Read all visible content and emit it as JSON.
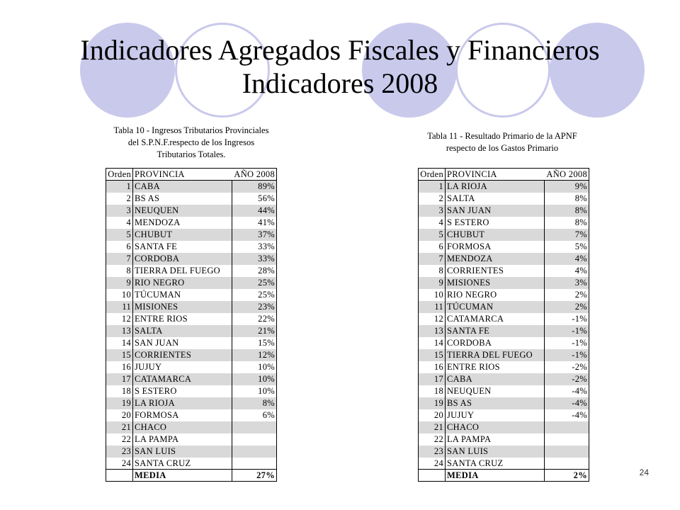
{
  "title_line1": "Indicadores Agregados Fiscales y Financieros",
  "title_line2": "Indicadores 2008",
  "accent_color": "#c9c9ec",
  "page_number": "24",
  "table1": {
    "caption": "Tabla 10 - Ingresos Tributarios Provinciales\ndel S.P.N.F.respecto de los Ingresos\nTributarios Totales.",
    "headers": {
      "order": "Orden",
      "province": "PROVINCIA",
      "year": "AÑO 2008"
    },
    "rows": [
      {
        "order": "1",
        "province": "CABA",
        "value": "89%"
      },
      {
        "order": "2",
        "province": "BS AS",
        "value": "56%"
      },
      {
        "order": "3",
        "province": "NEUQUEN",
        "value": "44%"
      },
      {
        "order": "4",
        "province": "MENDOZA",
        "value": "41%"
      },
      {
        "order": "5",
        "province": "CHUBUT",
        "value": "37%"
      },
      {
        "order": "6",
        "province": "SANTA FE",
        "value": "33%"
      },
      {
        "order": "7",
        "province": "CORDOBA",
        "value": "33%"
      },
      {
        "order": "8",
        "province": "TIERRA DEL FUEGO",
        "value": "28%"
      },
      {
        "order": "9",
        "province": "RIO NEGRO",
        "value": "25%"
      },
      {
        "order": "10",
        "province": "TÚCUMAN",
        "value": "25%"
      },
      {
        "order": "11",
        "province": "MISIONES",
        "value": "23%"
      },
      {
        "order": "12",
        "province": "ENTRE RIOS",
        "value": "22%"
      },
      {
        "order": "13",
        "province": "SALTA",
        "value": "21%"
      },
      {
        "order": "14",
        "province": "SAN JUAN",
        "value": "15%"
      },
      {
        "order": "15",
        "province": "CORRIENTES",
        "value": "12%"
      },
      {
        "order": "16",
        "province": "JUJUY",
        "value": "10%"
      },
      {
        "order": "17",
        "province": "CATAMARCA",
        "value": "10%"
      },
      {
        "order": "18",
        "province": "S ESTERO",
        "value": "10%"
      },
      {
        "order": "19",
        "province": "LA RIOJA",
        "value": "8%"
      },
      {
        "order": "20",
        "province": "FORMOSA",
        "value": "6%"
      },
      {
        "order": "21",
        "province": "CHACO",
        "value": ""
      },
      {
        "order": "22",
        "province": "LA PAMPA",
        "value": ""
      },
      {
        "order": "23",
        "province": "SAN LUIS",
        "value": ""
      },
      {
        "order": "24",
        "province": "SANTA CRUZ",
        "value": ""
      }
    ],
    "media_label": "MEDIA",
    "media_value": "27%"
  },
  "table2": {
    "caption": "Tabla 11 - Resultado Primario de la APNF\nrespecto de los Gastos Primario",
    "headers": {
      "order": "Orden",
      "province": "PROVINCIA",
      "year": "AÑO 2008"
    },
    "rows": [
      {
        "order": "1",
        "province": "LA RIOJA",
        "value": "9%"
      },
      {
        "order": "2",
        "province": "SALTA",
        "value": "8%"
      },
      {
        "order": "3",
        "province": "SAN JUAN",
        "value": "8%"
      },
      {
        "order": "4",
        "province": "S ESTERO",
        "value": "8%"
      },
      {
        "order": "5",
        "province": "CHUBUT",
        "value": "7%"
      },
      {
        "order": "6",
        "province": "FORMOSA",
        "value": "5%"
      },
      {
        "order": "7",
        "province": "MENDOZA",
        "value": "4%"
      },
      {
        "order": "8",
        "province": "CORRIENTES",
        "value": "4%"
      },
      {
        "order": "9",
        "province": "MISIONES",
        "value": "3%"
      },
      {
        "order": "10",
        "province": "RIO NEGRO",
        "value": "2%"
      },
      {
        "order": "11",
        "province": "TÚCUMAN",
        "value": "2%"
      },
      {
        "order": "12",
        "province": "CATAMARCA",
        "value": "-1%"
      },
      {
        "order": "13",
        "province": "SANTA FE",
        "value": "-1%"
      },
      {
        "order": "14",
        "province": "CORDOBA",
        "value": "-1%"
      },
      {
        "order": "15",
        "province": "TIERRA DEL FUEGO",
        "value": "-1%"
      },
      {
        "order": "16",
        "province": "ENTRE RIOS",
        "value": "-2%"
      },
      {
        "order": "17",
        "province": "CABA",
        "value": "-2%"
      },
      {
        "order": "18",
        "province": "NEUQUEN",
        "value": "-4%"
      },
      {
        "order": "19",
        "province": "BS AS",
        "value": "-4%"
      },
      {
        "order": "20",
        "province": "JUJUY",
        "value": "-4%"
      },
      {
        "order": "21",
        "province": "CHACO",
        "value": ""
      },
      {
        "order": "22",
        "province": "LA PAMPA",
        "value": ""
      },
      {
        "order": "23",
        "province": "SAN LUIS",
        "value": ""
      },
      {
        "order": "24",
        "province": "SANTA CRUZ",
        "value": ""
      }
    ],
    "media_label": "MEDIA",
    "media_value": "2%"
  }
}
